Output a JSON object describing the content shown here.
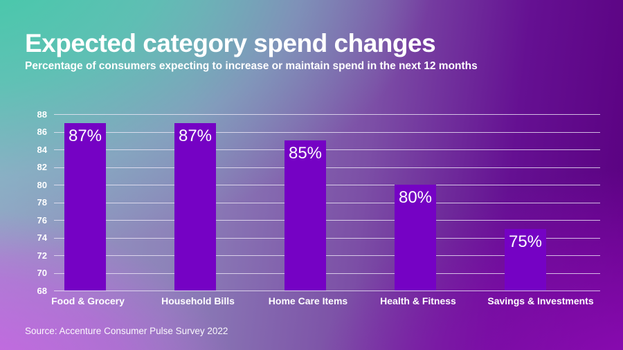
{
  "slide": {
    "title": "Expected category spend changes",
    "subtitle": "Percentage of consumers expecting to increase or maintain spend in the next 12 months",
    "source": "Source: Accenture Consumer Pulse Survey 2022"
  },
  "colors": {
    "bar": "#7502C4",
    "text": "#FFFFFF",
    "gridline": "#EFE8F8",
    "bg_top_left": "#3ECBA6",
    "bg_top_right": "#5A0080",
    "bg_bottom_left": "#C85CE4",
    "bg_bottom_right": "#8A10A8"
  },
  "chart_data": {
    "type": "bar",
    "title": "Expected category spend changes",
    "subtitle": "Percentage of consumers expecting to increase or maintain spend in the next 12 months",
    "categories": [
      "Food & Grocery",
      "Household Bills",
      "Home Care Items",
      "Health & Fitness",
      "Savings & Investments"
    ],
    "values": [
      87,
      87,
      85,
      80,
      75
    ],
    "value_labels": [
      "87%",
      "87%",
      "85%",
      "80%",
      "75%"
    ],
    "unit": "%",
    "xlabel": "",
    "ylabel": "",
    "ylim": [
      68,
      88
    ],
    "yticks": [
      68,
      70,
      72,
      74,
      76,
      78,
      80,
      82,
      84,
      86,
      88
    ],
    "ytick_step": 2,
    "grid": true,
    "legend_position": "none",
    "source": "Source: Accenture Consumer Pulse Survey 2022"
  }
}
